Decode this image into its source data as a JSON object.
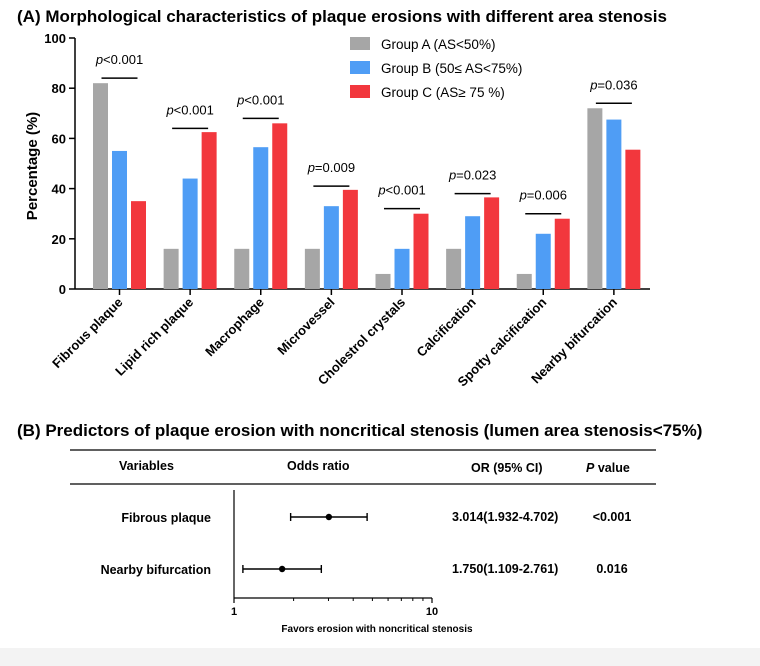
{
  "chart_data": [
    {
      "type": "bar",
      "title": "(A) Morphological characteristics of plaque erosions with different area stenosis",
      "ylabel": "Percentage (%)",
      "xlabel": "",
      "ylim": [
        0,
        100
      ],
      "yticks": [
        "0",
        "20",
        "40",
        "60",
        "80",
        "100"
      ],
      "ytick_values": [
        0,
        20,
        40,
        60,
        80,
        100
      ],
      "categories": [
        "Fibrous plaque",
        "Lipid rich plaque",
        "Macrophage",
        "Microvessel",
        "Cholestrol crystals",
        "Calcification",
        "Spotty calcification",
        "Nearby bifurcation"
      ],
      "series": [
        {
          "name": "Group A (AS<50%)",
          "color": "#a6a6a6",
          "values": [
            82,
            16,
            16,
            16,
            6,
            16,
            6,
            72
          ]
        },
        {
          "name": "Group B (50≤ AS<75%)",
          "color": "#4f9df5",
          "values": [
            55,
            44,
            56.5,
            33,
            16,
            29,
            22,
            67.5
          ]
        },
        {
          "name": "Group C (AS≥ 75 %)",
          "color": "#f2373d",
          "values": [
            35,
            62.5,
            66,
            39.5,
            30,
            36.5,
            28,
            55.5
          ]
        }
      ],
      "annotations": [
        {
          "prefix": "p",
          "text": "<0.001",
          "y": 84
        },
        {
          "prefix": "p",
          "text": "<0.001",
          "y": 64
        },
        {
          "prefix": "p",
          "text": "<0.001",
          "y": 68
        },
        {
          "prefix": "p",
          "text": "=0.009",
          "y": 41
        },
        {
          "prefix": "p",
          "text": "<0.001",
          "y": 32
        },
        {
          "prefix": "p",
          "text": "=0.023",
          "y": 38
        },
        {
          "prefix": "p",
          "text": "=0.006",
          "y": 30
        },
        {
          "prefix": "p",
          "text": "=0.036",
          "y": 74
        }
      ],
      "legend_position": "top-right",
      "grid": false
    },
    {
      "type": "forest",
      "title": "(B) Predictors of plaque erosion with noncritical stenosis (lumen area stenosis<75%)",
      "headers": {
        "variables": "Variables",
        "odds_ratio": "Odds ratio",
        "or_ci": "OR (95% CI)",
        "p_italic": "P",
        "p_rest": " value"
      },
      "rows": [
        {
          "variable": "Fibrous plaque",
          "or": 3.014,
          "lo": 1.932,
          "hi": 4.702,
          "or_text": "3.014(1.932-4.702)",
          "p_text": "<0.001"
        },
        {
          "variable": "Nearby bifurcation",
          "or": 1.75,
          "lo": 1.109,
          "hi": 2.761,
          "or_text": "1.750(1.109-2.761)",
          "p_text": "0.016"
        }
      ],
      "x_scale": "log",
      "xlim": [
        1,
        10
      ],
      "xticks": [
        "1",
        "10"
      ],
      "xtick_values": [
        1,
        10
      ],
      "xlabel": "Favors erosion with noncritical stenosis"
    }
  ]
}
